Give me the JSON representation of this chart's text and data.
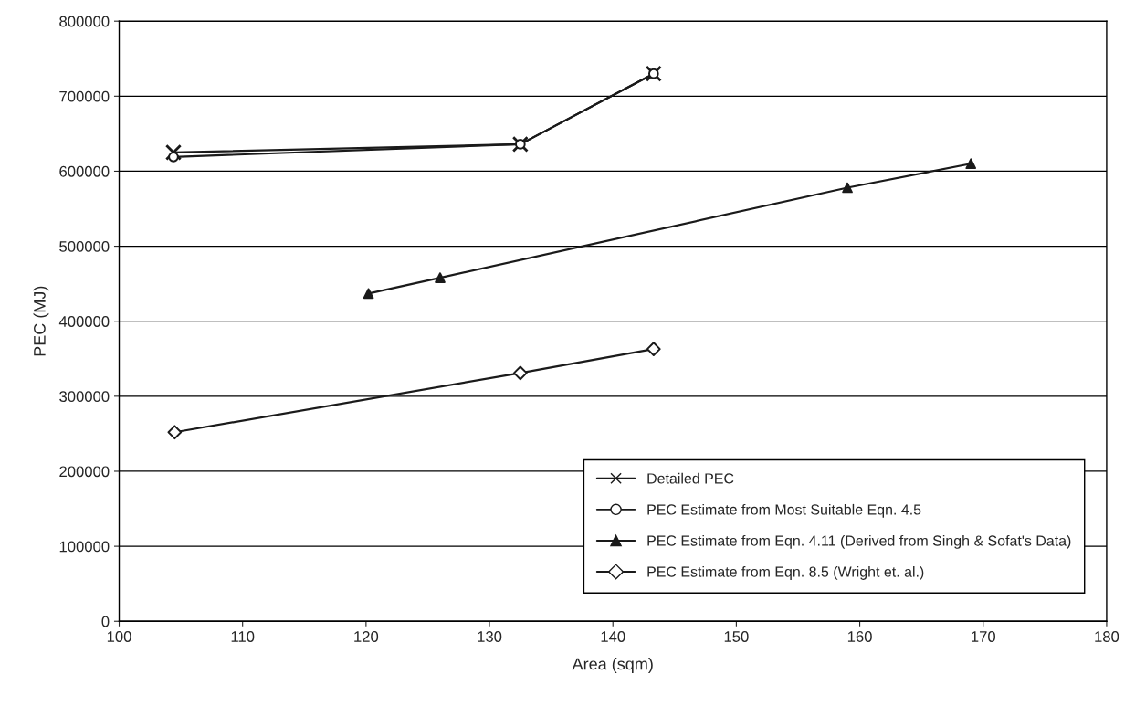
{
  "chart_data": {
    "type": "line",
    "xlabel": "Area (sqm)",
    "ylabel": "PEC (MJ)",
    "xlim": [
      100,
      180
    ],
    "xticks": [
      100,
      110,
      120,
      130,
      140,
      150,
      160,
      170,
      180
    ],
    "ylim": [
      0,
      800000
    ],
    "yticks": [
      0,
      100000,
      200000,
      300000,
      400000,
      500000,
      600000,
      700000,
      800000
    ],
    "grid": "y",
    "legend": "bottom right",
    "series": [
      {
        "name": "Detailed PEC",
        "color": "#1a1a1a",
        "marker": "cross",
        "x": [
          104.4,
          132.5,
          143.3
        ],
        "values": [
          625000,
          636000,
          730000
        ]
      },
      {
        "name": "PEC Estimate from Most Suitable Eqn. 4.5",
        "color": "#1a1a1a",
        "marker": "circle",
        "x": [
          104.4,
          132.5,
          143.3
        ],
        "values": [
          619000,
          636000,
          730000
        ]
      },
      {
        "name": "PEC Estimate from Eqn. 4.11 (Derived from Singh & Sofat's Data)",
        "color": "#1a1a1a",
        "marker": "triangle",
        "x": [
          120.2,
          126,
          159,
          169
        ],
        "values": [
          437000,
          458000,
          578000,
          610000
        ]
      },
      {
        "name": "PEC Estimate from Eqn. 8.5 (Wright et. al.)",
        "color": "#1a1a1a",
        "marker": "diamond",
        "x": [
          104.5,
          132.5,
          143.3
        ],
        "values": [
          252000,
          331000,
          363000
        ]
      }
    ]
  }
}
